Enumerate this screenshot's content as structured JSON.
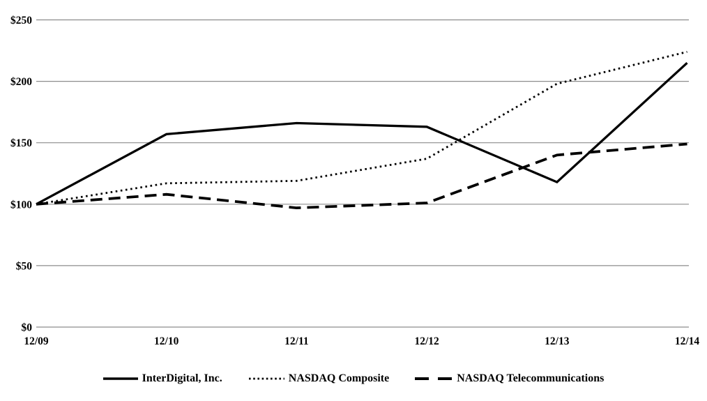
{
  "chart_data": {
    "type": "line",
    "title": "",
    "categories": [
      "12/09",
      "12/10",
      "12/11",
      "12/12",
      "12/13",
      "12/14"
    ],
    "series": [
      {
        "name": "InterDigital, Inc.",
        "line_style": "solid",
        "values": [
          100,
          157,
          166,
          163,
          118,
          215
        ]
      },
      {
        "name": "NASDAQ Composite",
        "line_style": "dotted",
        "values": [
          100,
          117,
          119,
          137,
          198,
          224
        ]
      },
      {
        "name": "NASDAQ Telecommunications",
        "line_style": "dashed",
        "values": [
          100,
          108,
          97,
          101,
          140,
          149
        ]
      }
    ],
    "y_ticks": [
      "$0",
      "$50",
      "$100",
      "$150",
      "$200",
      "$250"
    ],
    "y_tick_values": [
      0,
      50,
      100,
      150,
      200,
      250
    ],
    "ylim": [
      0,
      250
    ],
    "grid": true,
    "legend_position": "bottom",
    "colors": {
      "line": "#000000",
      "gridline": "#8c8c8c",
      "background": "#ffffff"
    }
  }
}
